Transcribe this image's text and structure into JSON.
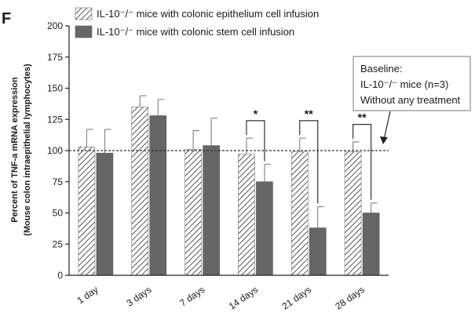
{
  "chart_data": {
    "type": "bar",
    "panel_label": "F",
    "categories": [
      "1 day",
      "3 days",
      "7 days",
      "14 days",
      "21 days",
      "28 days"
    ],
    "series": [
      {
        "name": "IL-10⁻/⁻ mice with colonic epithelium cell infusion",
        "values": [
          103,
          135,
          101,
          97,
          99,
          99
        ],
        "error": [
          14,
          9,
          15,
          13,
          11,
          8
        ],
        "pattern": "hatched",
        "color": "#ffffff"
      },
      {
        "name": "IL-10⁻/⁻ mice with colonic stem cell infusion",
        "values": [
          98,
          128,
          104,
          75,
          38,
          50
        ],
        "error": [
          19,
          13,
          22,
          14,
          17,
          8
        ],
        "pattern": "solid",
        "color": "#666666"
      }
    ],
    "ylabel_line1": "Percent of TNF-a mRNA expression",
    "ylabel_line2": "(Mouse colon intraepithelial lymphocytes)",
    "ylim": [
      0,
      200
    ],
    "yticks": [
      0,
      25,
      50,
      75,
      100,
      125,
      150,
      175,
      200
    ],
    "baseline": {
      "value": 100,
      "label_lines": [
        "Baseline:",
        "IL-10⁻/⁻ mice (n=3)",
        "Without any treatment"
      ]
    },
    "significance": [
      {
        "category": "14 days",
        "label": "*"
      },
      {
        "category": "21 days",
        "label": "**"
      },
      {
        "category": "28 days",
        "label": "**"
      }
    ],
    "legend_position": "top",
    "grid": false
  }
}
